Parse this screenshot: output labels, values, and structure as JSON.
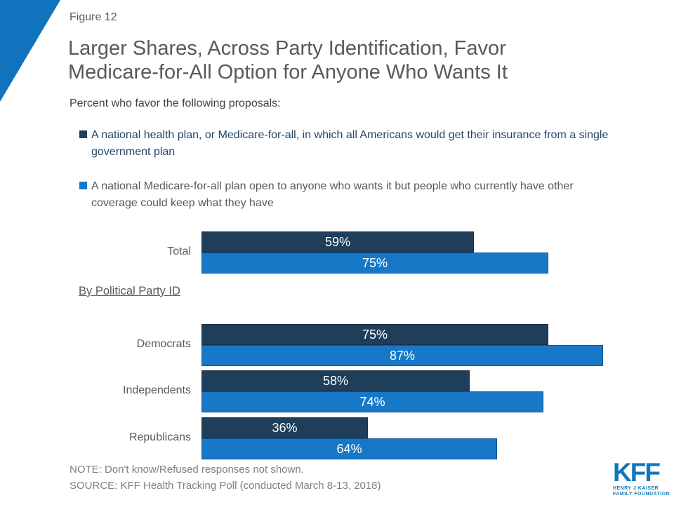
{
  "figure_label": "Figure 12",
  "title": {
    "line1": "Larger Shares, Across Party Identification, Favor",
    "line2": "Medicare-for-All Option for Anyone Who Wants It"
  },
  "subtitle": "Percent who favor the following proposals:",
  "legend": {
    "items": [
      {
        "line1": "A national health plan, or Medicare-for-all, in which all Americans would get their insurance from a single",
        "line2": "government plan",
        "color": "#1F3E5A"
      },
      {
        "line1": "A national Medicare-for-all plan open to anyone who wants it but people who currently have other",
        "line2": "coverage could keep what they have",
        "color": "#1878C8"
      }
    ]
  },
  "section_label": "By Political Party ID",
  "chart_data": {
    "type": "bar",
    "orientation": "horizontal",
    "categories": [
      "Total",
      "Democrats",
      "Independents",
      "Republicans"
    ],
    "series": [
      {
        "name": "A national health plan, or Medicare-for-all, in which all Americans would get their insurance from a single government plan",
        "color": "#1F3E5A",
        "values": [
          59,
          75,
          58,
          36
        ],
        "labels": [
          "59%",
          "75%",
          "58%",
          "36%"
        ]
      },
      {
        "name": "A national Medicare-for-all plan open to anyone who wants it but people who currently have other coverage could keep what they have",
        "color": "#1878C8",
        "values": [
          75,
          87,
          74,
          64
        ],
        "labels": [
          "75%",
          "87%",
          "74%",
          "64%"
        ]
      }
    ],
    "value_format": "percent",
    "xlim": [
      0,
      100
    ],
    "section_label_before_category": "Democrats",
    "legend_position": "top",
    "grid": false
  },
  "footer": {
    "note": "NOTE: Don't know/Refused responses not shown.",
    "source": "SOURCE: KFF Health Tracking Poll (conducted March 8-13, 2018)"
  },
  "logo": {
    "acronym": "KFF",
    "tagline_line1": "HENRY J KAISER",
    "tagline_line2": "FAMILY FOUNDATION"
  },
  "colors": {
    "dark_series": "#1F3E5A",
    "blue_series": "#1878C8",
    "dark_series_border": "#16314A",
    "blue_series_border": "#11568C",
    "triangle_main": "#1173BD",
    "triangle_dark": "#1D4976",
    "logo_blue": "#1377BC"
  }
}
